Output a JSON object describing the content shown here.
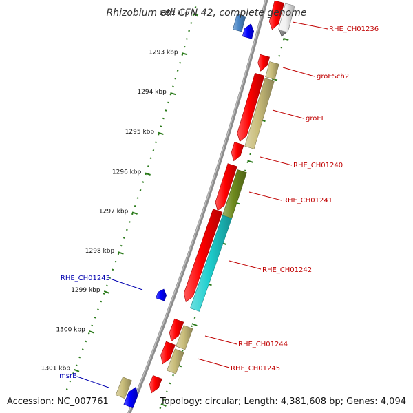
{
  "title": "Rhizobium etli CFN 42, complete genome",
  "footer": {
    "accession": "Accession: NC_007761",
    "summary": "Topology: circular; Length: 4,381,608 bp; Genes: 4,094"
  },
  "colors": {
    "backbone": "#8c8c8c",
    "ticks": "#2a7a1a",
    "label_forward": "#c00000",
    "label_reverse": "#0000b0",
    "gene_red": "#ff0000",
    "gene_tan": "#c9bd7a",
    "gene_olive": "#6e8a1e",
    "gene_cyan": "#1ecfcf",
    "gene_blue": "#0000ff",
    "gene_steel": "#4a86c6",
    "gene_gray": "#6a6a6a",
    "gene_white": "#f2f2f2"
  },
  "scale": {
    "unit": "kbp",
    "ticks": [
      {
        "label": "1292 kbp"
      },
      {
        "label": "1293 kbp"
      },
      {
        "label": "1294 kbp"
      },
      {
        "label": "1295 kbp"
      },
      {
        "label": "1296 kbp"
      },
      {
        "label": "1297 kbp"
      },
      {
        "label": "1298 kbp"
      },
      {
        "label": "1299 kbp"
      },
      {
        "label": "1300 kbp"
      },
      {
        "label": "1301 kbp"
      }
    ]
  },
  "labels": [
    {
      "name": "RHE_CH01236",
      "strand": "forward"
    },
    {
      "name": "groESch2",
      "strand": "forward"
    },
    {
      "name": "groEL",
      "strand": "forward"
    },
    {
      "name": "RHE_CH01240",
      "strand": "forward"
    },
    {
      "name": "RHE_CH01241",
      "strand": "forward"
    },
    {
      "name": "RHE_CH01242",
      "strand": "forward"
    },
    {
      "name": "RHE_CH01243",
      "strand": "reverse"
    },
    {
      "name": "RHE_CH01244",
      "strand": "forward"
    },
    {
      "name": "RHE_CH01245",
      "strand": "forward"
    },
    {
      "name": "msrB",
      "strand": "reverse"
    }
  ]
}
